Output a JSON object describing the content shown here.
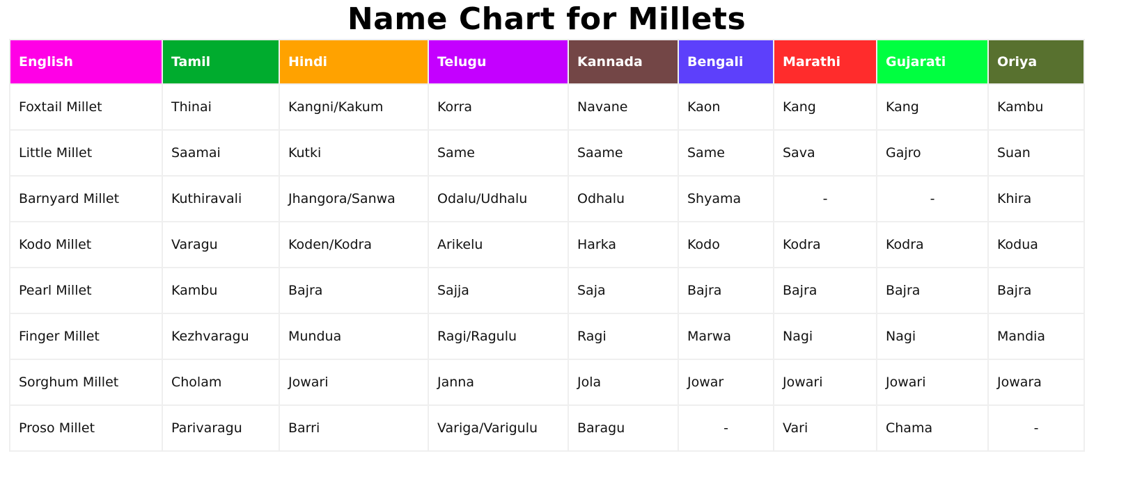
{
  "title": "Name Chart for Millets",
  "columns": [
    {
      "label": "English",
      "color": "#ff00e6"
    },
    {
      "label": "Tamil",
      "color": "#00ac2e"
    },
    {
      "label": "Hindi",
      "color": "#ffa200"
    },
    {
      "label": "Telugu",
      "color": "#c400ff"
    },
    {
      "label": "Kannada",
      "color": "#734646"
    },
    {
      "label": "Bengali",
      "color": "#5d40fb"
    },
    {
      "label": "Marathi",
      "color": "#ff2c2c"
    },
    {
      "label": "Gujarati",
      "color": "#00ff40"
    },
    {
      "label": "Oriya",
      "color": "#58712f"
    }
  ],
  "rows": [
    [
      "Foxtail Millet",
      "Thinai",
      "Kangni/Kakum",
      "Korra",
      "Navane",
      "Kaon",
      "Kang",
      "Kang",
      "Kambu"
    ],
    [
      "Little Millet",
      "Saamai",
      "Kutki",
      "Same",
      "Saame",
      "Same",
      "Sava",
      "Gajro",
      "Suan"
    ],
    [
      "Barnyard Millet",
      "Kuthiravali",
      "Jhangora/Sanwa",
      "Odalu/Udhalu",
      "Odhalu",
      "Shyama",
      "-",
      "-",
      "Khira"
    ],
    [
      "Kodo Millet",
      "Varagu",
      "Koden/Kodra",
      "Arikelu",
      "Harka",
      "Kodo",
      "Kodra",
      "Kodra",
      "Kodua"
    ],
    [
      "Pearl Millet",
      "Kambu",
      "Bajra",
      "Sajja",
      "Saja",
      "Bajra",
      "Bajra",
      "Bajra",
      "Bajra"
    ],
    [
      "Finger Millet",
      "Kezhvaragu",
      "Mundua",
      "Ragi/Ragulu",
      "Ragi",
      "Marwa",
      "Nagi",
      "Nagi",
      "Mandia"
    ],
    [
      "Sorghum Millet",
      "Cholam",
      "Jowari",
      "Janna",
      "Jola",
      "Jowar",
      "Jowari",
      "Jowari",
      "Jowara"
    ],
    [
      "Proso Millet",
      "Parivaragu",
      "Barri",
      "Variga/Varigulu",
      "Baragu",
      "-",
      "Vari",
      "Chama",
      "-"
    ]
  ]
}
